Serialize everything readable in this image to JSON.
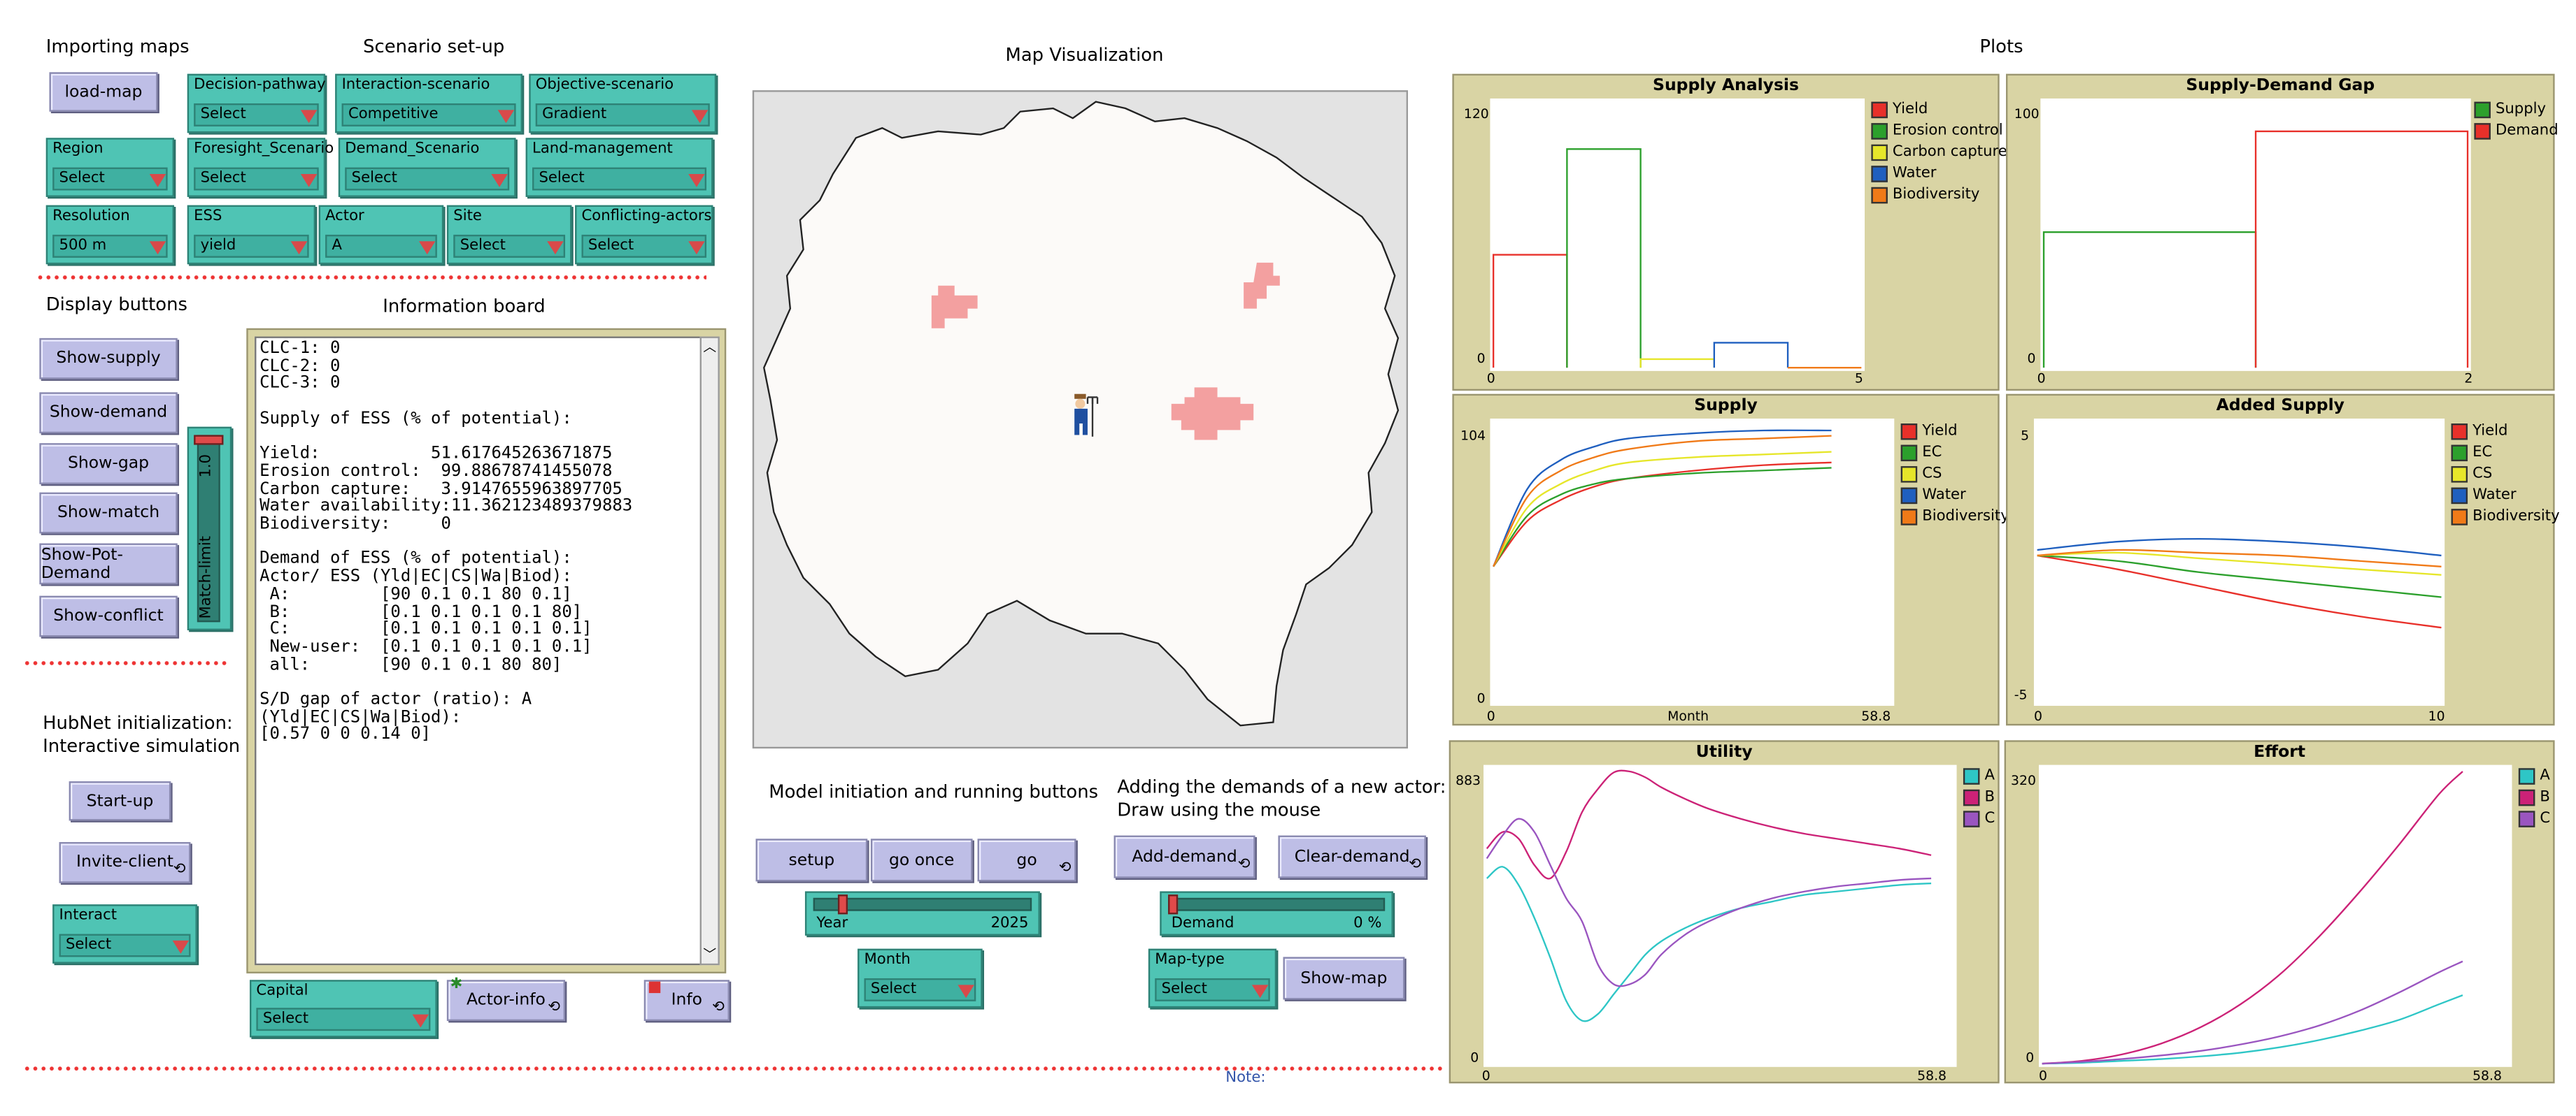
{
  "sections": {
    "importing": "Importing maps",
    "scenario": "Scenario set-up",
    "map_vis": "Map Visualization",
    "plots": "Plots",
    "display": "Display buttons",
    "info_board": "Information board",
    "hubnet": "HubNet initialization:",
    "hubnet2": "Interactive simulation",
    "model_init": "Model initiation and running buttons",
    "adding1": "Adding the demands of a new actor:",
    "adding2": "Draw using the mouse",
    "note": "Note:"
  },
  "buttons": {
    "load_map": "load-map",
    "show_supply": "Show-supply",
    "show_demand": "Show-demand",
    "show_gap": "Show-gap",
    "show_match": "Show-match",
    "show_pot_demand": "Show-Pot-Demand",
    "show_conflict": "Show-conflict",
    "start_up": "Start-up",
    "invite_client": "Invite-client",
    "actor_info": "Actor-info",
    "info": "Info",
    "setup": "setup",
    "go_once": "go once",
    "go": "go",
    "add_demand": "Add-demand",
    "clear_demand": "Clear-demand",
    "show_map": "Show-map"
  },
  "choosers": {
    "decision_pathway": {
      "label": "Decision-pathway",
      "value": "Select"
    },
    "interaction_scenario": {
      "label": "Interaction-scenario",
      "value": "Competitive"
    },
    "objective_scenario": {
      "label": "Objective-scenario",
      "value": "Gradient"
    },
    "region": {
      "label": "Region",
      "value": "Select"
    },
    "foresight": {
      "label": "Foresight_Scenario",
      "value": "Select"
    },
    "demand_scenario": {
      "label": "Demand_Scenario",
      "value": "Select"
    },
    "land_management": {
      "label": "Land-management",
      "value": "Select"
    },
    "resolution": {
      "label": "Resolution",
      "value": "500 m"
    },
    "ess": {
      "label": "ESS",
      "value": "yield"
    },
    "actor": {
      "label": "Actor",
      "value": "A"
    },
    "site": {
      "label": "Site",
      "value": "Select"
    },
    "conflicting": {
      "label": "Conflicting-actors",
      "value": "Select"
    },
    "interact": {
      "label": "Interact",
      "value": "Select"
    },
    "capital": {
      "label": "Capital",
      "value": "Select"
    },
    "month": {
      "label": "Month",
      "value": "Select"
    },
    "map_type": {
      "label": "Map-type",
      "value": "Select"
    }
  },
  "sliders": {
    "match_limit": {
      "label": "Match-limit",
      "value": "1.0",
      "fraction": 1.0
    },
    "year": {
      "label": "Year",
      "value": "2025",
      "fraction": 0.12
    },
    "demand": {
      "label": "Demand",
      "value": "0 %",
      "fraction": 0.0
    }
  },
  "info_text": "CLC-1: 0\nCLC-2: 0\nCLC-3: 0\n\nSupply of ESS (% of potential):\n\nYield:           51.617645263671875\nErosion control:  99.88678741455078\nCarbon capture:   3.9147655963897705\nWater availability:11.362123489379883\nBiodiversity:     0\n\nDemand of ESS (% of potential):\nActor/ ESS (Yld|EC|CS|Wa|Biod):\n A:         [90 0.1 0.1 80 0.1]\n B:         [0.1 0.1 0.1 0.1 80]\n C:         [0.1 0.1 0.1 0.1 0.1]\n New-user:  [0.1 0.1 0.1 0.1 0.1]\n all:       [90 0.1 0.1 80 80]\n\nS/D gap of actor (ratio): A\n(Yld|EC|CS|Wa|Biod):\n[0.57 0 0 0.14 0]",
  "colors": {
    "yield": "#e8302a",
    "erosion": "#2ca02c",
    "carbon": "#e6e62a",
    "water": "#1f5fbf",
    "biodiversity": "#f07a18",
    "A": "#2ec6c6",
    "B": "#cc2277",
    "C": "#9a55c0"
  },
  "plots": {
    "supply_analysis": {
      "title": "Supply Analysis",
      "y_max": "120",
      "y_min": "0",
      "x_min": "0",
      "x_max": "5",
      "legend": [
        "Yield",
        "Erosion control",
        "Carbon capture",
        "Water",
        "Biodiversity"
      ]
    },
    "gap": {
      "title": "Supply-Demand Gap",
      "y_max": "100",
      "y_min": "0",
      "x_min": "0",
      "x_max": "2",
      "legend": [
        "Supply",
        "Demand"
      ]
    },
    "supply": {
      "title": "Supply",
      "y_max": "104",
      "y_min": "0",
      "x_min": "0",
      "x_max": "58.8",
      "x_label": "Month",
      "legend": [
        "Yield",
        "EC",
        "CS",
        "Water",
        "Biodiversity"
      ]
    },
    "added_supply": {
      "title": "Added Supply",
      "y_max": "5",
      "y_min": "-5",
      "x_min": "0",
      "x_max": "10",
      "legend": [
        "Yield",
        "EC",
        "CS",
        "Water",
        "Biodiversity"
      ]
    },
    "utility": {
      "title": "Utility",
      "y_max": "883",
      "y_min": "0",
      "x_min": "0",
      "x_max": "58.8",
      "legend": [
        "A",
        "B",
        "C"
      ]
    },
    "effort": {
      "title": "Effort",
      "y_max": "320",
      "y_min": "0",
      "x_min": "0",
      "x_max": "58.8",
      "legend": [
        "A",
        "B",
        "C"
      ]
    }
  },
  "chart_data": [
    {
      "type": "bar",
      "title": "Supply Analysis",
      "xlim": [
        0,
        5
      ],
      "ylim": [
        0,
        120
      ],
      "series": [
        {
          "name": "Yield",
          "x": 0,
          "width": 1,
          "value": 51.6
        },
        {
          "name": "Erosion control",
          "x": 1,
          "width": 1,
          "value": 99.9
        },
        {
          "name": "Carbon capture",
          "x": 2,
          "width": 1,
          "value": 3.9
        },
        {
          "name": "Water",
          "x": 3,
          "width": 1,
          "value": 11.4
        },
        {
          "name": "Biodiversity",
          "x": 4,
          "width": 1,
          "value": 0
        }
      ]
    },
    {
      "type": "bar",
      "title": "Supply-Demand Gap",
      "xlim": [
        0,
        2
      ],
      "ylim": [
        0,
        100
      ],
      "series": [
        {
          "name": "Supply",
          "x": 0,
          "width": 1,
          "value": 51.6
        },
        {
          "name": "Demand",
          "x": 1,
          "width": 1,
          "value": 90
        }
      ]
    },
    {
      "type": "line",
      "title": "Supply",
      "xlabel": "Month",
      "xlim": [
        0,
        58.8
      ],
      "ylim": [
        0,
        104
      ],
      "x": [
        0,
        5,
        10,
        15,
        20,
        30,
        40,
        50
      ],
      "series": [
        {
          "name": "Yield",
          "values": [
            51,
            68,
            76,
            81,
            84,
            87,
            89,
            90
          ]
        },
        {
          "name": "EC",
          "values": [
            51,
            70,
            78,
            82,
            84,
            86,
            87,
            88
          ]
        },
        {
          "name": "CS",
          "values": [
            51,
            73,
            82,
            87,
            90,
            92,
            93,
            94
          ]
        },
        {
          "name": "Water",
          "values": [
            51,
            80,
            91,
            96,
            99,
            101,
            102,
            102
          ]
        },
        {
          "name": "Biodiversity",
          "values": [
            51,
            77,
            87,
            92,
            95,
            98,
            99,
            100
          ]
        }
      ]
    },
    {
      "type": "line",
      "title": "Added Supply",
      "xlim": [
        0,
        10
      ],
      "ylim": [
        -5,
        5
      ],
      "x": [
        0,
        2,
        4,
        6,
        8,
        10
      ],
      "series": [
        {
          "name": "Yield",
          "values": [
            0.3,
            -0.2,
            -0.8,
            -1.4,
            -1.9,
            -2.3
          ]
        },
        {
          "name": "EC",
          "values": [
            0.3,
            0.1,
            -0.3,
            -0.6,
            -0.9,
            -1.2
          ]
        },
        {
          "name": "CS",
          "values": [
            0.3,
            0.4,
            0.2,
            0.0,
            -0.2,
            -0.4
          ]
        },
        {
          "name": "Water",
          "values": [
            0.5,
            0.8,
            0.9,
            0.8,
            0.6,
            0.3
          ]
        },
        {
          "name": "Biodiversity",
          "values": [
            0.3,
            0.5,
            0.4,
            0.3,
            0.1,
            -0.1
          ]
        }
      ]
    },
    {
      "type": "line",
      "title": "Utility",
      "xlim": [
        0,
        58.8
      ],
      "ylim": [
        0,
        883
      ],
      "x": [
        0,
        2,
        4,
        6,
        8,
        10,
        12,
        14,
        16,
        18,
        20,
        22,
        25,
        28,
        32,
        36,
        40,
        44,
        48,
        52,
        56
      ],
      "series": [
        {
          "name": "A",
          "values": [
            560,
            595,
            540,
            440,
            320,
            190,
            130,
            150,
            210,
            270,
            330,
            370,
            410,
            440,
            470,
            490,
            510,
            520,
            530,
            540,
            545
          ]
        },
        {
          "name": "B",
          "values": [
            650,
            700,
            680,
            600,
            560,
            640,
            760,
            830,
            880,
            883,
            865,
            835,
            800,
            770,
            740,
            715,
            695,
            680,
            665,
            650,
            630
          ]
        },
        {
          "name": "C",
          "values": [
            620,
            690,
            740,
            700,
            600,
            500,
            430,
            300,
            240,
            240,
            270,
            330,
            390,
            430,
            470,
            500,
            520,
            535,
            545,
            555,
            560
          ]
        }
      ]
    },
    {
      "type": "line",
      "title": "Effort",
      "xlim": [
        0,
        58.8
      ],
      "ylim": [
        0,
        320
      ],
      "x": [
        0,
        5,
        10,
        15,
        20,
        25,
        30,
        35,
        40,
        45,
        50,
        53
      ],
      "series": [
        {
          "name": "A",
          "values": [
            0,
            1,
            3,
            5,
            8,
            12,
            18,
            26,
            36,
            48,
            65,
            75
          ]
        },
        {
          "name": "B",
          "values": [
            0,
            3,
            10,
            22,
            40,
            65,
            98,
            140,
            188,
            240,
            295,
            320
          ]
        },
        {
          "name": "C",
          "values": [
            0,
            2,
            5,
            9,
            14,
            21,
            30,
            42,
            58,
            78,
            100,
            112
          ]
        }
      ]
    }
  ]
}
